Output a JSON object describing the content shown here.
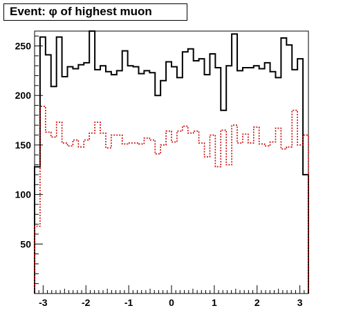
{
  "chart_data": {
    "type": "line",
    "title": "Event: φ of highest muon",
    "xlabel": "",
    "ylabel": "",
    "xlim": [
      -3.2,
      3.2
    ],
    "ylim": [
      0,
      265
    ],
    "grid": false,
    "x_ticks": [
      -3,
      -2,
      -1,
      0,
      1,
      2,
      3
    ],
    "x_tick_labels": [
      "-3",
      "-2",
      "-1",
      "0",
      "1",
      "2",
      "3"
    ],
    "y_ticks": [
      50,
      100,
      150,
      200,
      250
    ],
    "y_tick_labels": [
      "50",
      "100",
      "150",
      "200",
      "250"
    ],
    "bin_edges": [
      -3.2,
      -3.072,
      -2.944,
      -2.816,
      -2.688,
      -2.56,
      -2.432,
      -2.304,
      -2.176,
      -2.048,
      -1.92,
      -1.792,
      -1.664,
      -1.536,
      -1.408,
      -1.28,
      -1.152,
      -1.024,
      -0.896,
      -0.768,
      -0.64,
      -0.512,
      -0.384,
      -0.256,
      -0.128,
      0.0,
      0.128,
      0.256,
      0.384,
      0.512,
      0.64,
      0.768,
      0.896,
      1.024,
      1.152,
      1.28,
      1.408,
      1.536,
      1.664,
      1.792,
      1.92,
      2.048,
      2.176,
      2.304,
      2.432,
      2.56,
      2.688,
      2.816,
      2.944,
      3.072,
      3.2
    ],
    "series": [
      {
        "color": "#000000",
        "style": "solid",
        "values": [
          128,
          259,
          241,
          209,
          259,
          219,
          229,
          227,
          231,
          233,
          265,
          226,
          230,
          224,
          221,
          225,
          245,
          230,
          229,
          222,
          225,
          223,
          200,
          215,
          234,
          229,
          218,
          244,
          247,
          235,
          237,
          221,
          242,
          228,
          185,
          230,
          262,
          225,
          228,
          228,
          230,
          227,
          233,
          224,
          218,
          258,
          251,
          226,
          237,
          120
        ]
      },
      {
        "color": "#cc0000",
        "style": "dotted",
        "values": [
          68,
          189,
          163,
          158,
          173,
          152,
          149,
          155,
          148,
          155,
          162,
          173,
          162,
          147,
          160,
          160,
          151,
          152,
          152,
          151,
          157,
          155,
          141,
          150,
          164,
          153,
          164,
          169,
          162,
          164,
          152,
          138,
          160,
          128,
          165,
          130,
          170,
          152,
          161,
          152,
          168,
          151,
          149,
          153,
          167,
          146,
          148,
          185,
          150,
          160
        ]
      }
    ]
  }
}
